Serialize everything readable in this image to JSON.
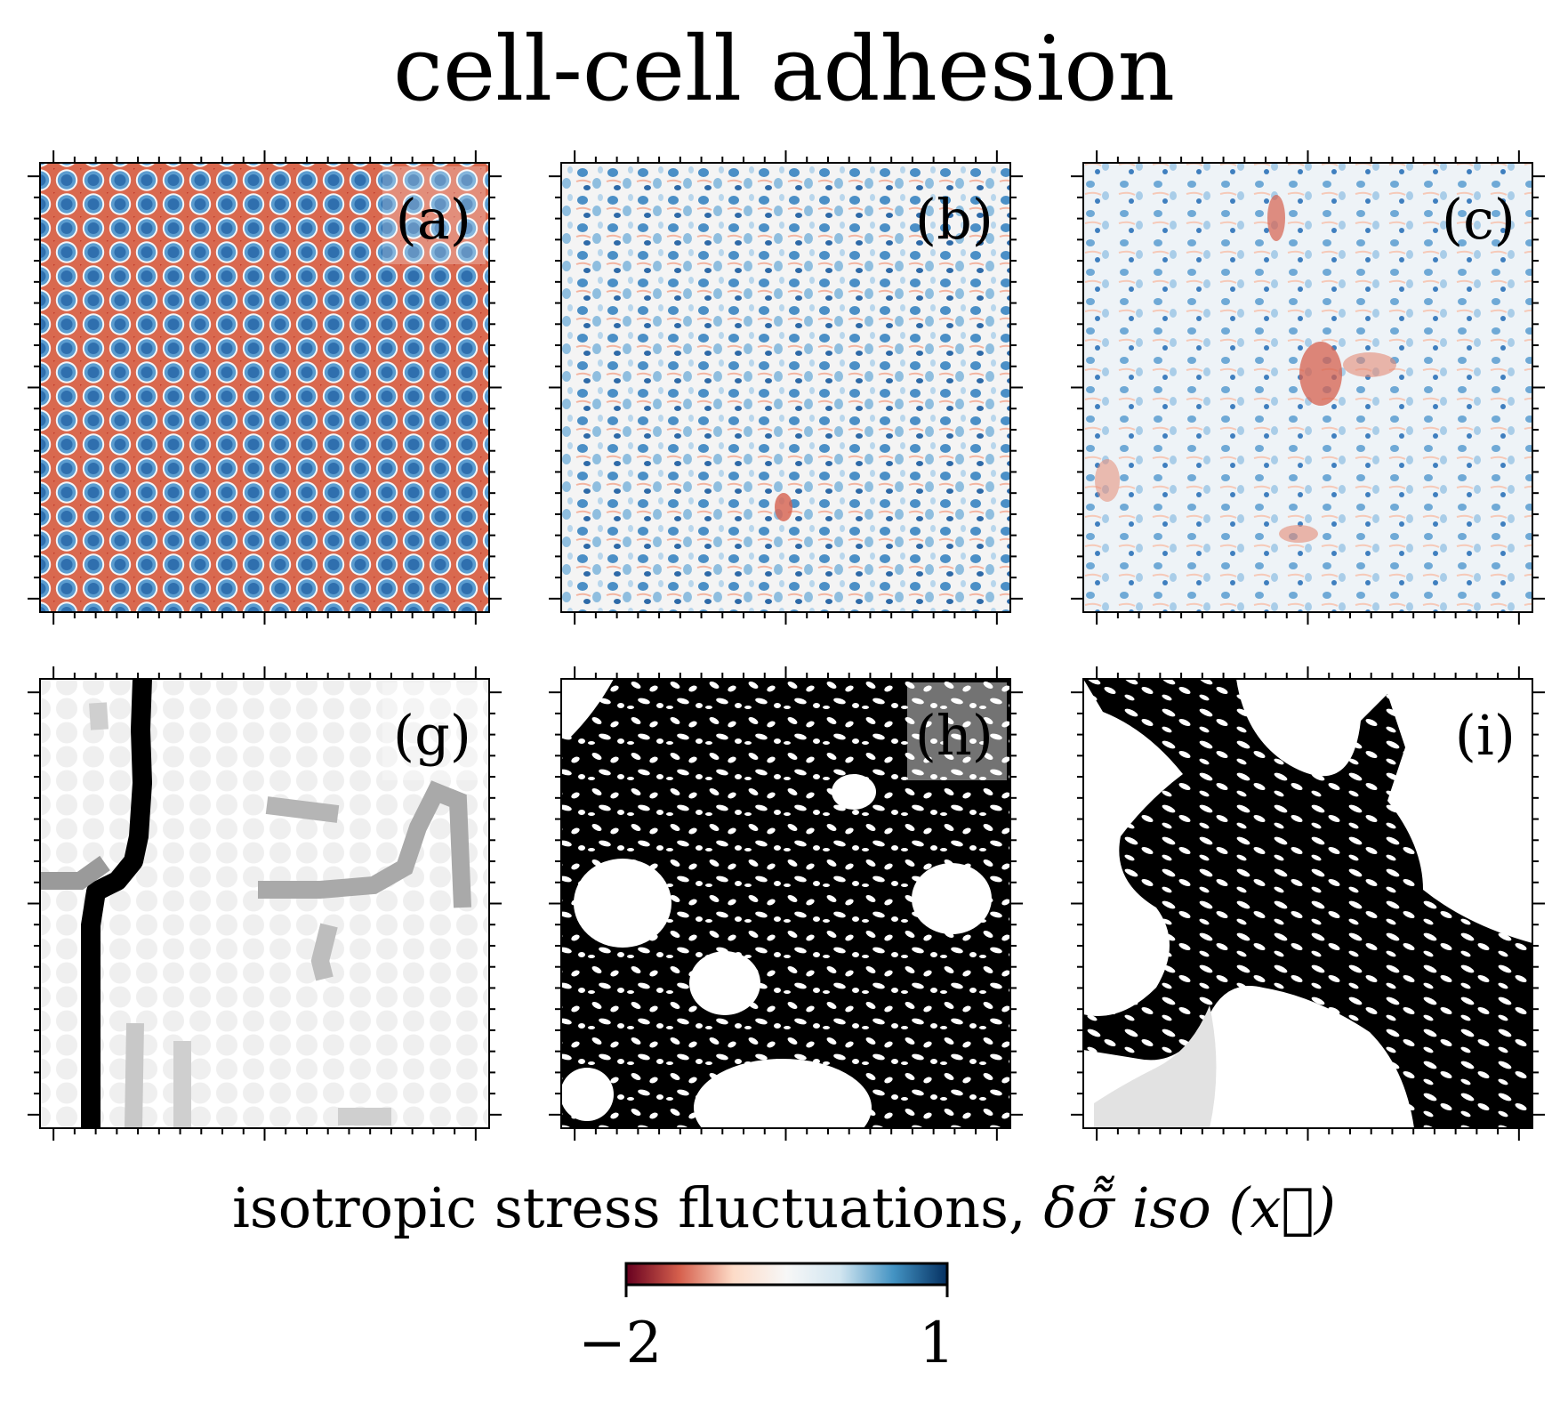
{
  "title": "cell-cell adhesion",
  "chart_data": {
    "type": "heatmap",
    "panels": [
      {
        "label": "(a)",
        "field": "isotropic stress fluctuations",
        "pattern": "ordered hexagonal cell packing"
      },
      {
        "label": "(b)",
        "field": "isotropic stress fluctuations",
        "pattern": "disordered cells"
      },
      {
        "label": "(c)",
        "field": "isotropic stress fluctuations",
        "pattern": "disordered cells with red stress hot-spots"
      },
      {
        "label": "(g)",
        "field": "cluster map",
        "pattern": "chains of black and grey cells on light grey lattice"
      },
      {
        "label": "(h)",
        "field": "cluster map",
        "pattern": "percolating black cluster"
      },
      {
        "label": "(i)",
        "field": "cluster map",
        "pattern": "diagonal black cluster band"
      }
    ],
    "colorbar": {
      "label_text": "isotropic stress fluctuations,",
      "label_math": "δσ̃̃ iso (x⃗)",
      "min_label": "−2",
      "max_label": "1",
      "vmin": -2,
      "vmax": 1,
      "colormap": "RdBu",
      "colors": [
        "#67001f",
        "#d6604d",
        "#fddbc7",
        "#f7f7f7",
        "#d1e5f0",
        "#4393c3",
        "#053061"
      ]
    },
    "axes": {
      "ticks_labeled": false,
      "grid": false
    }
  }
}
